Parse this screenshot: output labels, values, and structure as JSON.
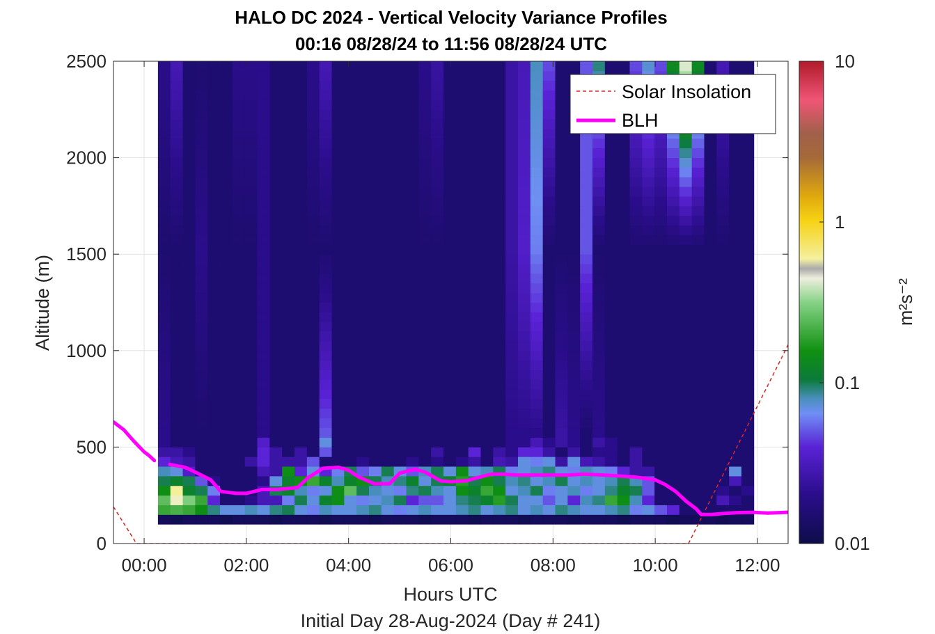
{
  "chart_data": {
    "type": "heatmap",
    "title": "HALO DC 2024 - Vertical Velocity Variance Profiles",
    "subtitle": "00:16 08/28/24 to 11:56 08/28/24  UTC",
    "xlabel": "Hours UTC",
    "xlabel2": "Initial Day 28-Aug-2024 (Day # 241)",
    "ylabel": "Altitude (m)",
    "xlim": [
      -0.6,
      12.6
    ],
    "ylim": [
      0,
      2500
    ],
    "x_ticks": [
      0,
      2,
      4,
      6,
      8,
      10,
      12
    ],
    "x_tick_labels": [
      "00:00",
      "02:00",
      "04:00",
      "06:00",
      "08:00",
      "10:00",
      "12:00"
    ],
    "y_ticks": [
      0,
      500,
      1000,
      1500,
      2000,
      2500
    ],
    "y_tick_labels": [
      "0",
      "500",
      "1000",
      "1500",
      "2000",
      "2500"
    ],
    "grid": true,
    "legend_position": "top-right",
    "colorbar": {
      "scale": "log",
      "range": [
        0.01,
        10
      ],
      "tick_values": [
        0.01,
        0.1,
        1,
        10
      ],
      "tick_labels": [
        "0.01",
        "0.1",
        "1",
        "10"
      ],
      "label": "m²s⁻²"
    },
    "heatmap": {
      "x_start_hours": 0.27,
      "x_end_hours": 11.93,
      "y_bottom_m": 100,
      "y_top_m": 2500,
      "bin_height_m": 50,
      "rows": [
        {
          "y": 100,
          "v": [
            0.012,
            0.011,
            0.012,
            0.012,
            0.012,
            0.011,
            0.012,
            0.012,
            0.012,
            0.011,
            0.012,
            0.012,
            0.012,
            0.011,
            0.012,
            0.012,
            0.012,
            0.011,
            0.012,
            0.012,
            0.012,
            0.011,
            0.012,
            0.012,
            0.012,
            0.011,
            0.012,
            0.012,
            0.012,
            0.011,
            0.012,
            0.012,
            0.012,
            0.011,
            0.012,
            0.012,
            0.012,
            0.011,
            0.012,
            0.012,
            0.012,
            0.011,
            0.012,
            0.012,
            0.012,
            0.011,
            0.012,
            0.012
          ]
        },
        {
          "y": 150,
          "v": [
            0.2,
            0.22,
            0.2,
            0.15,
            0.09,
            0.07,
            0.07,
            0.08,
            0.07,
            0.09,
            0.1,
            0.07,
            0.06,
            0.08,
            0.07,
            0.07,
            0.08,
            0.09,
            0.07,
            0.06,
            0.07,
            0.08,
            0.07,
            0.07,
            0.08,
            0.09,
            0.07,
            0.08,
            0.09,
            0.07,
            0.08,
            0.07,
            0.09,
            0.08,
            0.07,
            0.07,
            0.08,
            0.09,
            0.06,
            0.07,
            0.05,
            0.04,
            0.015,
            0.015,
            0.015,
            0.015,
            0.015,
            0.015
          ]
        },
        {
          "y": 200,
          "v": [
            0.25,
            0.5,
            0.3,
            0.2,
            0.04,
            0.015,
            0.015,
            0.02,
            0.03,
            0.03,
            0.06,
            0.1,
            0.07,
            0.12,
            0.15,
            0.07,
            0.06,
            0.07,
            0.08,
            0.1,
            0.04,
            0.05,
            0.05,
            0.07,
            0.09,
            0.1,
            0.12,
            0.18,
            0.1,
            0.07,
            0.07,
            0.05,
            0.07,
            0.04,
            0.08,
            0.09,
            0.2,
            0.15,
            0.08,
            0.04,
            0.015,
            0.015,
            0.015,
            0.015,
            0.015,
            0.03,
            0.02,
            0.015
          ]
        },
        {
          "y": 250,
          "v": [
            0.15,
            0.6,
            0.12,
            0.1,
            0.06,
            0.015,
            0.015,
            0.015,
            0.03,
            0.1,
            0.12,
            0.08,
            0.06,
            0.07,
            0.15,
            0.25,
            0.1,
            0.08,
            0.07,
            0.06,
            0.09,
            0.1,
            0.08,
            0.07,
            0.15,
            0.12,
            0.2,
            0.15,
            0.07,
            0.08,
            0.1,
            0.06,
            0.07,
            0.08,
            0.06,
            0.07,
            0.09,
            0.12,
            0.1,
            0.05,
            0.015,
            0.015,
            0.015,
            0.015,
            0.015,
            0.02,
            0.015,
            0.02
          ]
        },
        {
          "y": 300,
          "v": [
            0.1,
            0.12,
            0.1,
            0.05,
            0.02,
            0.015,
            0.015,
            0.015,
            0.02,
            0.07,
            0.12,
            0.15,
            0.2,
            0.12,
            0.08,
            0.12,
            0.15,
            0.1,
            0.08,
            0.09,
            0.12,
            0.07,
            0.1,
            0.12,
            0.18,
            0.1,
            0.15,
            0.1,
            0.08,
            0.09,
            0.07,
            0.08,
            0.1,
            0.07,
            0.08,
            0.07,
            0.08,
            0.1,
            0.08,
            0.05,
            0.015,
            0.015,
            0.015,
            0.015,
            0.015,
            0.015,
            0.03,
            0.015
          ]
        },
        {
          "y": 350,
          "v": [
            0.08,
            0.07,
            0.035,
            0.015,
            0.015,
            0.015,
            0.015,
            0.015,
            0.03,
            0.025,
            0.15,
            0.04,
            0.07,
            0.04,
            0.06,
            0.1,
            0.05,
            0.06,
            0.1,
            0.07,
            0.05,
            0.08,
            0.1,
            0.07,
            0.15,
            0.07,
            0.08,
            0.1,
            0.06,
            0.07,
            0.08,
            0.09,
            0.07,
            0.06,
            0.08,
            0.07,
            0.06,
            0.04,
            0.025,
            0.025,
            0.015,
            0.015,
            0.015,
            0.015,
            0.015,
            0.015,
            0.07,
            0.015
          ]
        },
        {
          "y": 400,
          "v": [
            0.04,
            0.03,
            0.025,
            0.015,
            0.015,
            0.015,
            0.015,
            0.025,
            0.04,
            0.025,
            0.025,
            0.025,
            0.05,
            0.015,
            0.015,
            0.015,
            0.02,
            0.015,
            0.015,
            0.015,
            0.02,
            0.015,
            0.02,
            0.015,
            0.02,
            0.025,
            0.015,
            0.03,
            0.025,
            0.07,
            0.06,
            0.07,
            0.025,
            0.07,
            0.03,
            0.025,
            0.02,
            0.015,
            0.025,
            0.015,
            0.015,
            0.015,
            0.015,
            0.015,
            0.015,
            0.015,
            0.015,
            0.015
          ]
        },
        {
          "y": 450,
          "v": [
            0.025,
            0.025,
            0.02,
            0.015,
            0.015,
            0.015,
            0.015,
            0.015,
            0.04,
            0.025,
            0.015,
            0.025,
            0.015,
            0.05,
            0.015,
            0.015,
            0.015,
            0.015,
            0.015,
            0.015,
            0.015,
            0.015,
            0.025,
            0.015,
            0.015,
            0.04,
            0.015,
            0.025,
            0.02,
            0.04,
            0.04,
            0.025,
            0.015,
            0.025,
            0.015,
            0.02,
            0.02,
            0.015,
            0.025,
            0.015,
            0.015,
            0.015,
            0.015,
            0.015,
            0.015,
            0.015,
            0.015,
            0.015
          ]
        },
        {
          "y": 500,
          "v": [
            0.02,
            0.015,
            0.015,
            0.015,
            0.015,
            0.015,
            0.015,
            0.015,
            0.035,
            0.015,
            0.015,
            0.015,
            0.015,
            0.07,
            0.015,
            0.015,
            0.015,
            0.015,
            0.015,
            0.015,
            0.015,
            0.015,
            0.015,
            0.015,
            0.015,
            0.015,
            0.015,
            0.015,
            0.02,
            0.02,
            0.03,
            0.02,
            0.025,
            0.02,
            0.015,
            0.025,
            0.02,
            0.015,
            0.015,
            0.015,
            0.015,
            0.015,
            0.015,
            0.015,
            0.015,
            0.015,
            0.015,
            0.015
          ]
        },
        {
          "y": 550,
          "v": [
            0.02,
            0.015,
            0.015,
            0.015,
            0.015,
            0.015,
            0.015,
            0.015,
            0.02,
            0.015,
            0.015,
            0.015,
            0.015,
            0.05,
            0.015,
            0.015,
            0.015,
            0.015,
            0.015,
            0.015,
            0.015,
            0.015,
            0.015,
            0.015,
            0.015,
            0.015,
            0.015,
            0.015,
            0.02,
            0.02,
            0.02,
            0.015,
            0.025,
            0.02,
            0.015,
            0.02,
            0.015,
            0.015,
            0.015,
            0.015,
            0.015,
            0.015,
            0.015,
            0.015,
            0.015,
            0.015,
            0.015,
            0.015
          ]
        },
        {
          "y": 1500,
          "v": [
            0.015,
            0.015,
            0.015,
            0.02,
            0.015,
            0.015,
            0.015,
            0.015,
            0.02,
            0.015,
            0.015,
            0.015,
            0.015,
            0.015,
            0.015,
            0.015,
            0.015,
            0.015,
            0.015,
            0.015,
            0.015,
            0.015,
            0.015,
            0.015,
            0.015,
            0.015,
            0.015,
            0.015,
            0.025,
            0.035,
            0.06,
            0.015,
            0.015,
            0.015,
            0.05,
            0.015,
            0.015,
            0.015,
            0.015,
            0.015,
            0.015,
            0.015,
            0.015,
            0.015,
            0.015,
            0.015,
            0.015,
            0.015
          ]
        },
        {
          "y": 2500,
          "v": [
            0.02,
            0.03,
            0.015,
            0.015,
            0.015,
            0.015,
            0.02,
            0.02,
            0.02,
            0.015,
            0.015,
            0.015,
            0.02,
            0.03,
            0.015,
            0.015,
            0.015,
            0.015,
            0.015,
            0.015,
            0.015,
            0.02,
            0.025,
            0.015,
            0.015,
            0.015,
            0.015,
            0.015,
            0.025,
            0.03,
            0.08,
            0.05,
            0.015,
            0.015,
            0.05,
            0.1,
            0.015,
            0.015,
            0.05,
            0.08,
            0.05,
            0.15,
            0.5,
            0.15,
            0.015,
            0.03,
            0.015,
            0.015
          ]
        }
      ]
    },
    "series": [
      {
        "name": "Solar Insolation",
        "style": "dashed",
        "color": "#d62728",
        "x": [
          -0.6,
          -0.15,
          10.65,
          12.6
        ],
        "y": [
          190,
          0,
          0,
          1030
        ]
      },
      {
        "name": "BLH",
        "style": "solid",
        "color": "#ff00ff",
        "segments": [
          {
            "x": [
              -0.6,
              -0.4,
              -0.2,
              0.0,
              0.1,
              0.2
            ],
            "y": [
              630,
              590,
              530,
              475,
              455,
              430
            ]
          },
          {
            "x": [
              0.5,
              0.8,
              1.0,
              1.3,
              1.5,
              1.8,
              2.0,
              2.3,
              2.6,
              3.0,
              3.2,
              3.5,
              3.8,
              4.0,
              4.2,
              4.5,
              4.8,
              5.0,
              5.3,
              5.5,
              5.8,
              6.0,
              6.3,
              6.5,
              6.8,
              7.0,
              7.3,
              7.6,
              8.0,
              8.3,
              8.6,
              9.0,
              9.3,
              9.6,
              10.0,
              10.2,
              10.4,
              10.6,
              10.8,
              10.9,
              11.1,
              11.3,
              11.6,
              11.9,
              12.2,
              12.6
            ],
            "y": [
              410,
              395,
              370,
              330,
              270,
              260,
              260,
              280,
              280,
              290,
              340,
              390,
              395,
              380,
              345,
              310,
              310,
              365,
              385,
              370,
              325,
              320,
              325,
              340,
              360,
              360,
              355,
              355,
              355,
              355,
              360,
              355,
              350,
              345,
              330,
              305,
              270,
              220,
              180,
              150,
              150,
              155,
              160,
              162,
              158,
              162
            ]
          }
        ]
      }
    ]
  }
}
